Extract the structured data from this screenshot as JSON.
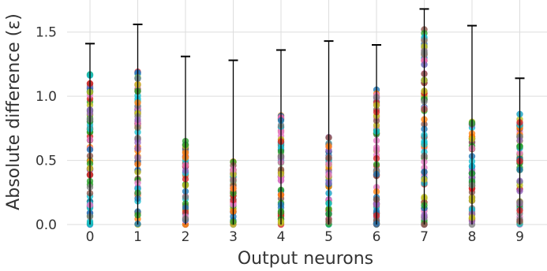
{
  "chart_data": {
    "type": "scatter",
    "title": "",
    "xlabel": "Output neurons",
    "ylabel": "Absolute difference (ε)",
    "categories": [
      "0",
      "1",
      "2",
      "3",
      "4",
      "5",
      "6",
      "7",
      "8",
      "9"
    ],
    "ylim": [
      0,
      1.75
    ],
    "yticks": [
      0.0,
      0.5,
      1.0,
      1.5
    ],
    "ytick_labels": [
      "0.0",
      "0.5",
      "1.0",
      "1.5"
    ],
    "grid": true,
    "observed_max": [
      1.17,
      1.19,
      0.65,
      0.49,
      0.85,
      0.68,
      1.05,
      1.52,
      0.8,
      0.86
    ],
    "error_bar_top": [
      1.41,
      1.56,
      1.31,
      1.28,
      1.36,
      1.43,
      1.4,
      1.68,
      1.55,
      1.14
    ],
    "error_bar_bottom": [
      0,
      0,
      0,
      0,
      0,
      0,
      0,
      0,
      0,
      0
    ],
    "point_palette": [
      "#1f77b4",
      "#ff7f0e",
      "#2ca02c",
      "#d62728",
      "#9467bd",
      "#8c564b",
      "#e377c2",
      "#7f7f7f",
      "#bcbd22",
      "#17becf"
    ]
  }
}
